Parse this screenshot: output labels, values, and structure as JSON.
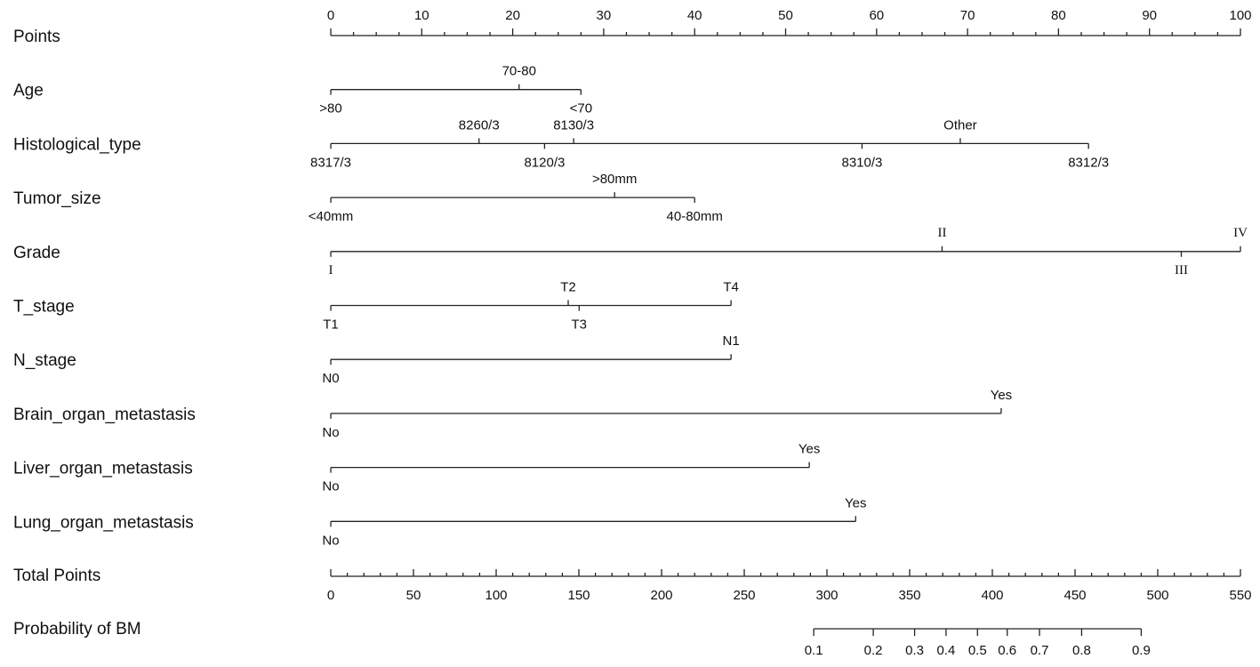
{
  "chart_data": {
    "type": "nomogram",
    "points_label": "Points",
    "points_lim": [
      0,
      100
    ],
    "points_ticks": [
      0,
      10,
      20,
      30,
      40,
      50,
      60,
      70,
      80,
      90,
      100
    ],
    "points_minor_ticks": [
      2.5,
      5,
      7.5,
      12.5,
      15,
      17.5,
      22.5,
      25,
      27.5,
      32.5,
      35,
      37.5,
      42.5,
      45,
      47.5,
      52.5,
      55,
      57.5,
      62.5,
      65,
      67.5,
      72.5,
      75,
      77.5,
      82.5,
      85,
      87.5,
      92.5,
      95,
      97.5
    ],
    "variables": [
      {
        "name": "Age",
        "levels": [
          {
            "label": ">80",
            "points": 0
          },
          {
            "label": "70-80",
            "points": 20.7
          },
          {
            "label": "<70",
            "points": 27.5
          }
        ]
      },
      {
        "name": "Histological_type",
        "levels": [
          {
            "label": "8317/3",
            "points": 0
          },
          {
            "label": "8260/3",
            "points": 16.3
          },
          {
            "label": "8120/3",
            "points": 23.5
          },
          {
            "label": "8130/3",
            "points": 26.7
          },
          {
            "label": "8310/3",
            "points": 58.4
          },
          {
            "label": "Other",
            "points": 69.2
          },
          {
            "label": "8312/3",
            "points": 83.3
          }
        ]
      },
      {
        "name": "Tumor_size",
        "levels": [
          {
            "label": "<40mm",
            "points": 0
          },
          {
            "label": ">80mm",
            "points": 31.2
          },
          {
            "label": "40-80mm",
            "points": 40
          }
        ]
      },
      {
        "name": "Grade",
        "label_font": "serif",
        "levels": [
          {
            "label": "I",
            "points": 0
          },
          {
            "label": "II",
            "points": 67.2
          },
          {
            "label": "III",
            "points": 93.5
          },
          {
            "label": "IV",
            "points": 100
          }
        ]
      },
      {
        "name": "T_stage",
        "levels": [
          {
            "label": "T1",
            "points": 0
          },
          {
            "label": "T2",
            "points": 26.1
          },
          {
            "label": "T3",
            "points": 27.3
          },
          {
            "label": "T4",
            "points": 44
          }
        ]
      },
      {
        "name": "N_stage",
        "levels": [
          {
            "label": "N0",
            "points": 0
          },
          {
            "label": "N1",
            "points": 44
          }
        ]
      },
      {
        "name": "Brain_organ_metastasis",
        "levels": [
          {
            "label": "No",
            "points": 0
          },
          {
            "label": "Yes",
            "points": 73.7
          }
        ]
      },
      {
        "name": "Liver_organ_metastasis",
        "levels": [
          {
            "label": "No",
            "points": 0
          },
          {
            "label": "Yes",
            "points": 52.6
          }
        ]
      },
      {
        "name": "Lung_organ_metastasis",
        "levels": [
          {
            "label": "No",
            "points": 0
          },
          {
            "label": "Yes",
            "points": 57.7
          }
        ]
      }
    ],
    "total_label": "Total Points",
    "total_lim": [
      0,
      550
    ],
    "total_ticks": [
      0,
      50,
      100,
      150,
      200,
      250,
      300,
      350,
      400,
      450,
      500,
      550
    ],
    "total_minor_ticks": [
      10,
      20,
      30,
      40,
      60,
      70,
      80,
      90,
      110,
      120,
      130,
      140,
      160,
      170,
      180,
      190,
      210,
      220,
      230,
      240,
      260,
      270,
      280,
      290,
      310,
      320,
      330,
      340,
      360,
      370,
      380,
      390,
      410,
      420,
      430,
      440,
      460,
      470,
      480,
      490,
      510,
      520,
      530,
      540
    ],
    "probability_label": "Probability of BM",
    "probability_ticks": [
      {
        "probability": 0.1,
        "points": 292
      },
      {
        "probability": 0.2,
        "points": 328
      },
      {
        "probability": 0.3,
        "points": 353
      },
      {
        "probability": 0.4,
        "points": 372
      },
      {
        "probability": 0.5,
        "points": 391
      },
      {
        "probability": 0.6,
        "points": 409
      },
      {
        "probability": 0.7,
        "points": 428.5
      },
      {
        "probability": 0.8,
        "points": 454
      },
      {
        "probability": 0.9,
        "points": 490
      }
    ]
  }
}
